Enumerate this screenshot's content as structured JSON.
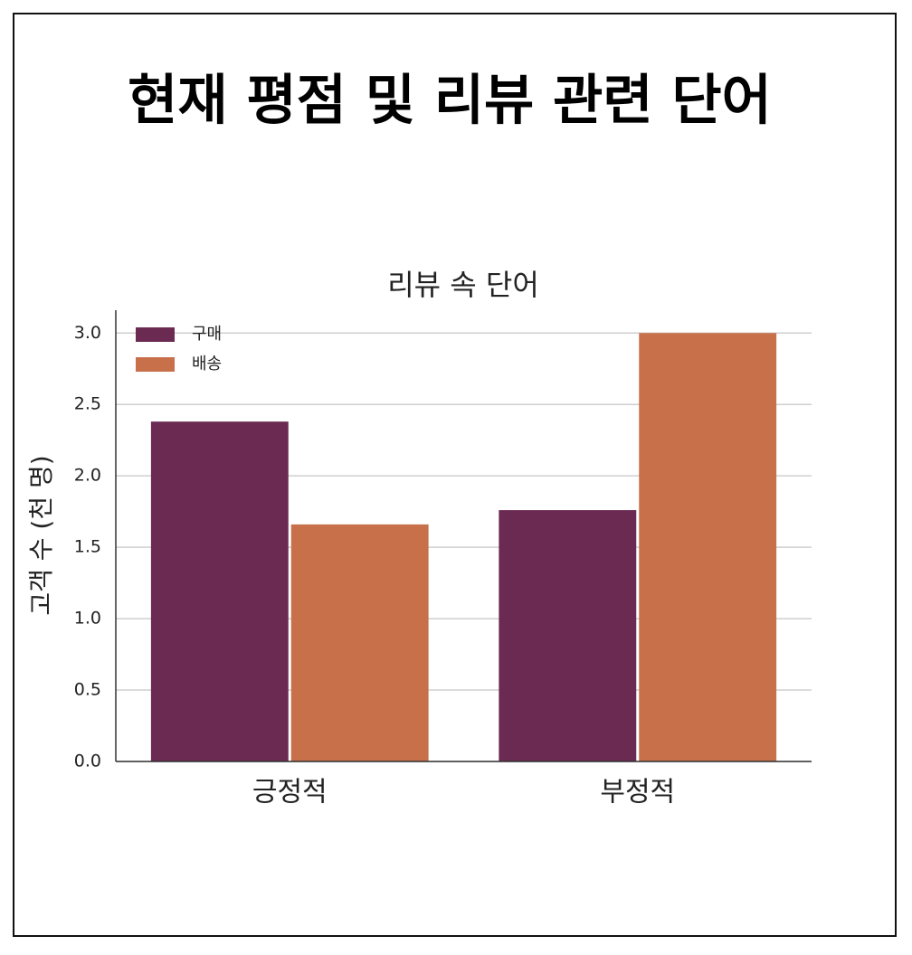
{
  "chart_data": {
    "type": "bar",
    "page_title": "현재 평점 및 리뷰 관련 단어",
    "title": "리뷰 속 단어",
    "y_label": "고객 수 (천 명)",
    "categories": [
      "긍정적",
      "부정적"
    ],
    "series": [
      {
        "name": "구매",
        "color": "#6b2a52",
        "values": [
          2.38,
          1.76
        ]
      },
      {
        "name": "배송",
        "color": "#c8704a",
        "values": [
          1.66,
          3.0
        ]
      }
    ],
    "ylim": [
      0,
      3.16
    ],
    "yticks": [
      {
        "value": 0,
        "label": "0.0"
      },
      0.5,
      {
        "value": 1,
        "label": "1.0"
      },
      1.5,
      {
        "value": 2,
        "label": "2.0"
      },
      2.5,
      {
        "value": 3,
        "label": "3.0"
      }
    ],
    "grid": true,
    "legend": "upper-left"
  }
}
